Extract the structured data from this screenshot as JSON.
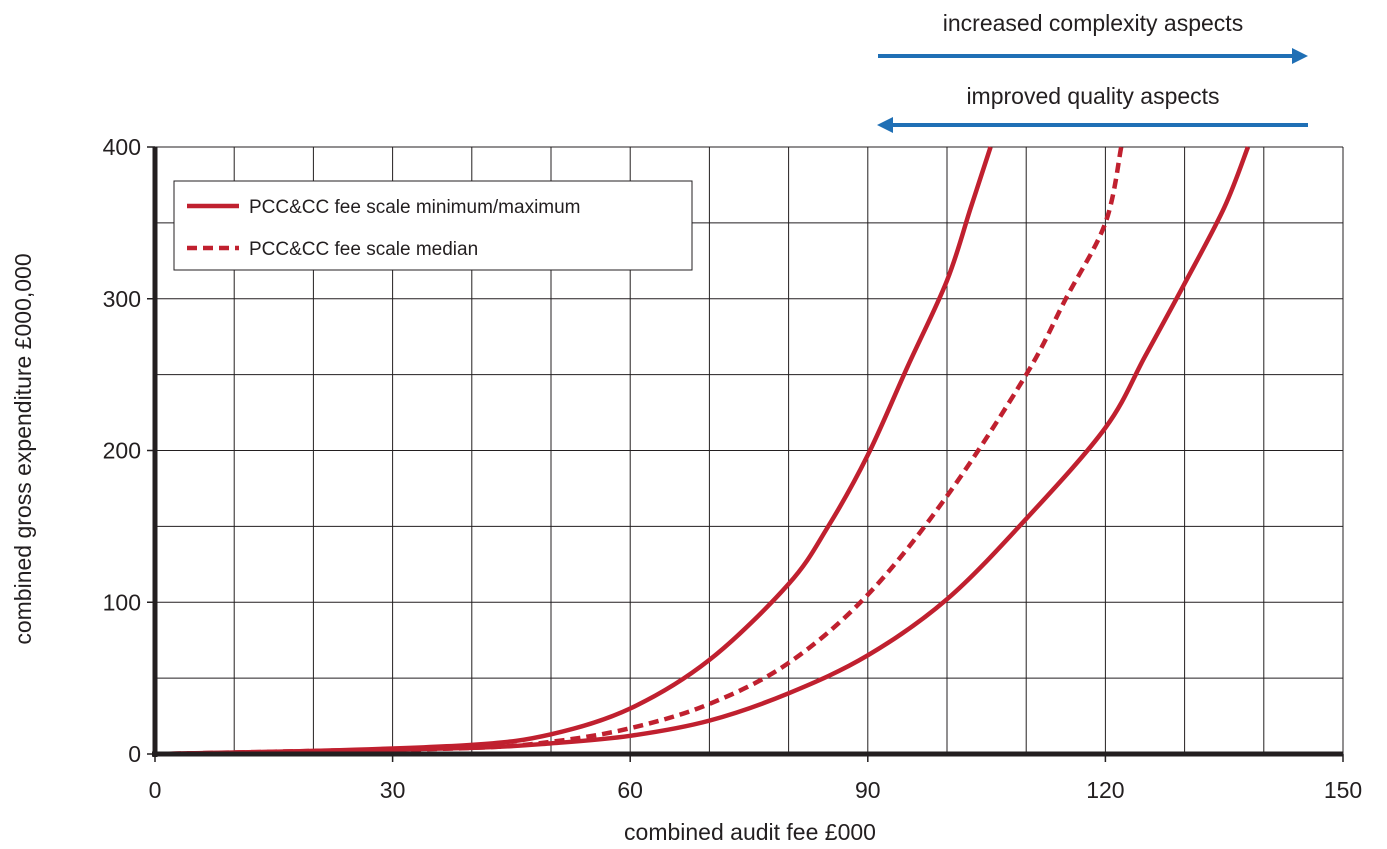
{
  "chart_data": {
    "type": "line",
    "title": "",
    "xlabel": "combined audit fee £000",
    "ylabel": "combined gross expenditure £000,000",
    "xlim": [
      0,
      150
    ],
    "ylim": [
      0,
      400
    ],
    "x_ticks": [
      "0",
      "30",
      "60",
      "90",
      "120",
      "150"
    ],
    "y_ticks": [
      "0",
      "100",
      "200",
      "300",
      "400"
    ],
    "grid": true,
    "x_minor_step": 10,
    "y_minor_step": 50,
    "legend": {
      "placement": "top-left",
      "entries": [
        {
          "label": "PCC&CC fee scale minimum/maximum",
          "style": "solid"
        },
        {
          "label": "PCC&CC fee scale median",
          "style": "dashed"
        }
      ]
    },
    "series": [
      {
        "role": "maximum",
        "style": "solid",
        "color": "#c0202f",
        "x": [
          0,
          20,
          40,
          50,
          60,
          70,
          80,
          85,
          90,
          95,
          100,
          103,
          105.5
        ],
        "y": [
          0,
          2,
          6,
          13,
          30,
          62,
          112,
          150,
          197,
          255,
          312,
          360,
          400
        ]
      },
      {
        "role": "median",
        "style": "dashed",
        "color": "#c0202f",
        "x": [
          0,
          20,
          40,
          50,
          60,
          70,
          80,
          90,
          100,
          110,
          115,
          120,
          122
        ],
        "y": [
          0,
          2,
          4,
          8,
          17,
          33,
          60,
          105,
          170,
          250,
          300,
          350,
          400
        ]
      },
      {
        "role": "minimum",
        "style": "solid",
        "color": "#c0202f",
        "x": [
          0,
          20,
          40,
          50,
          60,
          70,
          80,
          90,
          100,
          110,
          120,
          125,
          130,
          135,
          138
        ],
        "y": [
          0,
          2,
          4,
          7,
          12,
          22,
          40,
          65,
          102,
          155,
          215,
          262,
          310,
          360,
          400
        ]
      }
    ],
    "annotations": [
      {
        "text": "increased complexity aspects",
        "arrow": "right",
        "color": "#1f6fb5"
      },
      {
        "text": "improved quality aspects",
        "arrow": "left",
        "color": "#1f6fb5"
      }
    ]
  }
}
